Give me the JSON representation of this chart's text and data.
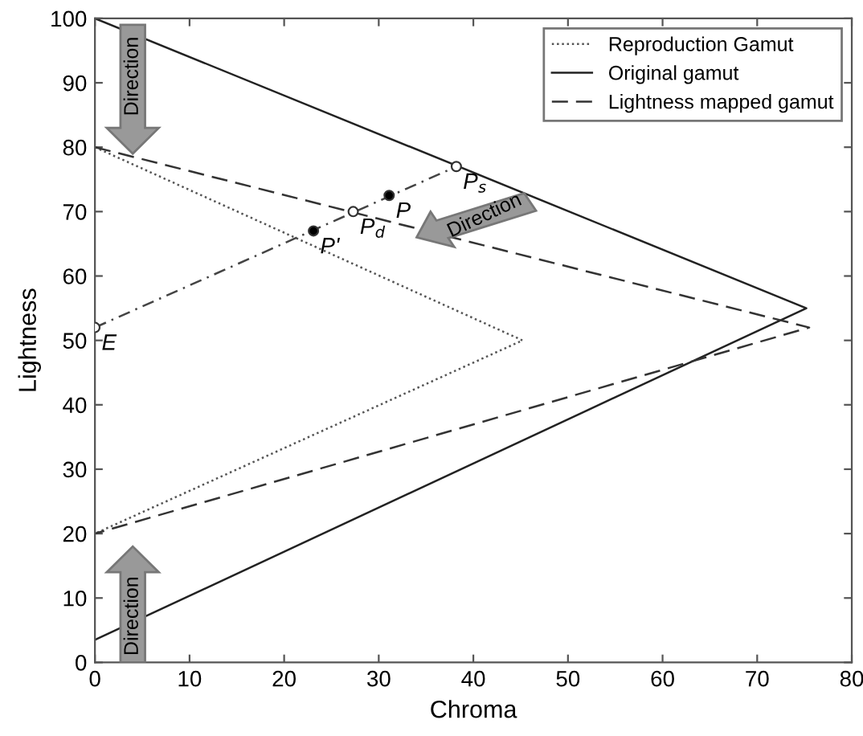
{
  "chart_data": {
    "type": "line",
    "xlabel": "Chroma",
    "ylabel": "Lightness",
    "series": [
      {
        "name": "Reproduction Gamut",
        "color": "#555555",
        "line_style": "dotted",
        "x": [
          0,
          45.2,
          0
        ],
        "values": [
          80,
          50,
          20
        ]
      },
      {
        "name": "Original gamut",
        "color": "#222222",
        "line_style": "solid",
        "x": [
          0,
          75.2,
          0
        ],
        "values": [
          100,
          55,
          3.5
        ]
      },
      {
        "name": "Lightness mapped gamut",
        "color": "#333333",
        "line_style": "dashed",
        "x": [
          0,
          75.5,
          0
        ],
        "values": [
          80,
          52,
          20
        ]
      },
      {
        "color": "#444444",
        "line_style": "dashdot",
        "x": [
          0,
          38.2
        ],
        "values": [
          52,
          77
        ]
      },
      {
        "type": "scatter",
        "marker": "circle",
        "color": "#ffffff",
        "x": [
          0,
          27.3,
          38.2
        ],
        "values": [
          52,
          70,
          77
        ]
      },
      {
        "type": "scatter",
        "marker": "circle",
        "color": "#000000",
        "x": [
          23.1,
          31.1
        ],
        "values": [
          67,
          72.5
        ]
      }
    ],
    "annotations": [
      {
        "text": "E",
        "x": 0,
        "y": 52
      },
      {
        "text": "P'",
        "x": 23.1,
        "y": 67
      },
      {
        "text": "P$_{d}$",
        "x": 27.3,
        "y": 70
      },
      {
        "text": "P",
        "x": 31.1,
        "y": 72.5
      },
      {
        "text": "P$_{s}$",
        "x": 38.2,
        "y": 77
      },
      "Direction",
      "Direction",
      "Direction"
    ],
    "xlim": [
      0,
      80
    ],
    "ylim": [
      0,
      100
    ],
    "xticks": [
      0,
      10,
      20,
      30,
      40,
      50,
      60,
      70,
      80
    ],
    "yticks": [
      0,
      10,
      20,
      30,
      40,
      50,
      60,
      70,
      80,
      90,
      100
    ],
    "grid": false,
    "legend": "top right"
  }
}
